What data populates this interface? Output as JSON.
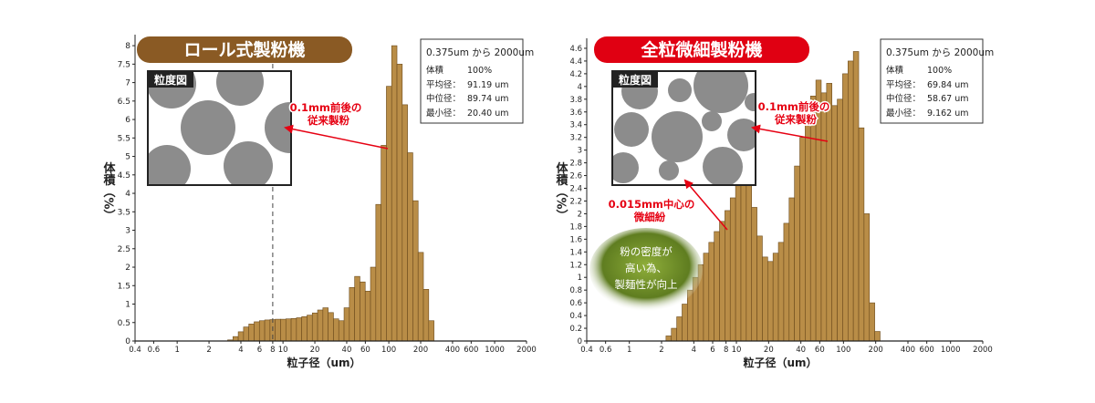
{
  "colors": {
    "bar_fill": "#b98d47",
    "bar_stroke": "#6b4a1c",
    "roll_banner": "#8a5a24",
    "full_banner": "#e00012",
    "arrow_red": "#e60012",
    "particle_gray": "#8c8c8c",
    "oval_green": "#6f8f2a"
  },
  "chart_data": [
    {
      "type": "bar",
      "title": "ロール式製粉機",
      "xlabel": "粒子径（um）",
      "ylabel": "体積（%）",
      "x_scale": "log",
      "xlim": [
        0.4,
        2000
      ],
      "ylim": [
        0,
        8.2
      ],
      "x_ticks": [
        0.4,
        0.6,
        1,
        2,
        4,
        6,
        8,
        10,
        20,
        40,
        60,
        100,
        200,
        400,
        600,
        1000,
        2000
      ],
      "x_tick_labels": [
        "0.4",
        "0.6",
        "1",
        "2",
        "4",
        "6",
        "8",
        "10",
        "20",
        "40",
        "60",
        "100",
        "200",
        "400",
        "600",
        "1000",
        "2000"
      ],
      "y_ticks": [
        0,
        0.5,
        1,
        1.5,
        2,
        2.5,
        3,
        3.5,
        4,
        4.5,
        5,
        5.5,
        6,
        6.5,
        7,
        7.5,
        8
      ],
      "y_tick_labels": [
        "0",
        "0.5",
        "1",
        "1.5",
        "2",
        "2.5",
        "3",
        "3.5",
        "4",
        "4.5",
        "5",
        "5.5",
        "6",
        "6.5",
        "7",
        "7.5",
        "8"
      ],
      "bin_edges_start": 3.0,
      "bin_ratio": 1.122,
      "values": [
        0.03,
        0.12,
        0.25,
        0.38,
        0.46,
        0.52,
        0.55,
        0.57,
        0.58,
        0.59,
        0.59,
        0.6,
        0.61,
        0.63,
        0.66,
        0.7,
        0.76,
        0.84,
        0.9,
        0.77,
        0.6,
        0.55,
        0.9,
        1.45,
        1.75,
        1.6,
        1.35,
        2.0,
        3.7,
        5.3,
        6.9,
        8.0,
        7.5,
        6.4,
        5.1,
        3.8,
        2.4,
        1.4,
        0.55
      ],
      "dashed_line_x": 8,
      "stats_box": {
        "range": "0.375um から 2000um",
        "volume_label": "体積",
        "volume": "100%",
        "mean_label": "平均径：",
        "mean": "91.19 um",
        "median_label": "中位径：",
        "median": "89.74 um",
        "min_label": "最小径：",
        "min": "20.40 um"
      },
      "inset_label": "粒度図",
      "annotations": [
        {
          "lines": [
            "0.1mm前後の",
            "従来製粉"
          ]
        }
      ]
    },
    {
      "type": "bar",
      "title": "全粒微細製粉機",
      "xlabel": "粒子径（um）",
      "ylabel": "体積（%）",
      "x_scale": "log",
      "xlim": [
        0.4,
        2000
      ],
      "ylim": [
        0,
        4.7
      ],
      "x_ticks": [
        0.4,
        0.6,
        1,
        2,
        4,
        6,
        8,
        10,
        20,
        40,
        60,
        100,
        200,
        400,
        600,
        1000,
        2000
      ],
      "x_tick_labels": [
        "0.4",
        "0.6",
        "1",
        "2",
        "4",
        "6",
        "8",
        "10",
        "20",
        "40",
        "60",
        "100",
        "200",
        "400",
        "600",
        "1000",
        "2000"
      ],
      "y_ticks": [
        0,
        0.2,
        0.4,
        0.6,
        0.8,
        1,
        1.2,
        1.4,
        1.6,
        1.8,
        2,
        2.2,
        2.4,
        2.6,
        2.8,
        3,
        3.2,
        3.4,
        3.6,
        3.8,
        4,
        4.2,
        4.4,
        4.6
      ],
      "y_tick_labels": [
        "0",
        "0.2",
        "0.4",
        "0.6",
        "0.8",
        "1",
        "1.2",
        "1.4",
        "1.6",
        "1.8",
        "2",
        "2.2",
        "2.4",
        "2.6",
        "2.8",
        "3",
        "3.2",
        "3.4",
        "3.6",
        "3.8",
        "4",
        "4.2",
        "4.4",
        "4.6"
      ],
      "bin_edges_start": 2.2,
      "bin_ratio": 1.122,
      "values": [
        0.08,
        0.2,
        0.38,
        0.58,
        0.8,
        1.0,
        1.2,
        1.38,
        1.55,
        1.72,
        1.88,
        2.05,
        2.25,
        2.45,
        2.62,
        2.45,
        2.1,
        1.65,
        1.32,
        1.25,
        1.38,
        1.55,
        1.85,
        2.25,
        2.75,
        3.2,
        3.55,
        3.85,
        4.1,
        3.9,
        4.05,
        3.7,
        3.8,
        4.2,
        4.4,
        4.55,
        3.35,
        2.0,
        0.6,
        0.15
      ],
      "stats_box": {
        "range": "0.375um から 2000um",
        "volume_label": "体積",
        "volume": "100%",
        "mean_label": "平均径：",
        "mean": "69.84 um",
        "median_label": "中位径：",
        "median": "58.67 um",
        "min_label": "最小径：",
        "min": "9.162 um"
      },
      "inset_label": "粒度図",
      "annotations": [
        {
          "lines": [
            "0.1mm前後の",
            "従来製粉"
          ]
        },
        {
          "lines": [
            "0.015mm中心の",
            "微細紛"
          ]
        },
        {
          "lines": [
            "粉の密度が",
            "高い為、",
            "製麺性が向上"
          ]
        }
      ]
    }
  ]
}
